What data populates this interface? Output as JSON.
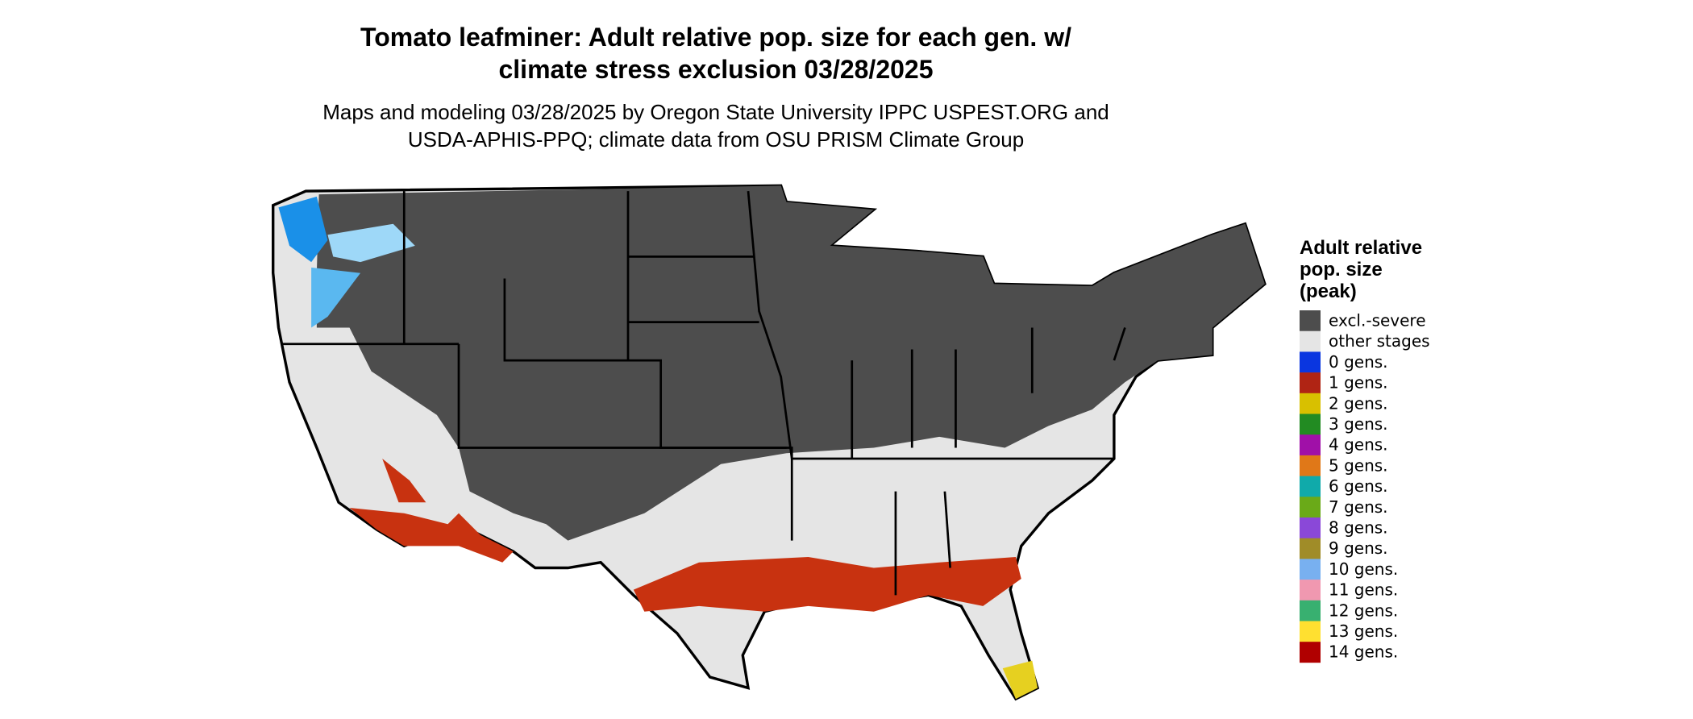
{
  "header": {
    "title": [
      "Tomato leafminer: Adult relative pop. size for each gen. w/",
      "climate stress exclusion 03/28/2025"
    ],
    "subtitle": [
      "Maps and modeling 03/28/2025 by Oregon State University IPPC USPEST.ORG and",
      "USDA-APHIS-PPQ; climate data from OSU PRISM Climate Group"
    ]
  },
  "legend": {
    "title": [
      "Adult relative",
      "pop. size",
      "(peak)"
    ],
    "items": [
      {
        "label": "excl.-severe",
        "color": "#4d4d4d"
      },
      {
        "label": "other stages",
        "color": "#e5e5e5"
      },
      {
        "label": "0 gens.",
        "color": "#0a36e0"
      },
      {
        "label": "1 gens.",
        "color": "#b02414"
      },
      {
        "label": "2 gens.",
        "color": "#d8c000"
      },
      {
        "label": "3 gens.",
        "color": "#228b22"
      },
      {
        "label": "4 gens.",
        "color": "#a010a8"
      },
      {
        "label": "5 gens.",
        "color": "#e07818"
      },
      {
        "label": "6 gens.",
        "color": "#10aaaa"
      },
      {
        "label": "7 gens.",
        "color": "#6aaa18"
      },
      {
        "label": "8 gens.",
        "color": "#8a48d8"
      },
      {
        "label": "9 gens.",
        "color": "#a08c28"
      },
      {
        "label": "10 gens.",
        "color": "#78b0f0"
      },
      {
        "label": "11 gens.",
        "color": "#f098b0"
      },
      {
        "label": "12 gens.",
        "color": "#38b070"
      },
      {
        "label": "13 gens.",
        "color": "#ffe030"
      },
      {
        "label": "14 gens.",
        "color": "#b00000"
      }
    ]
  }
}
